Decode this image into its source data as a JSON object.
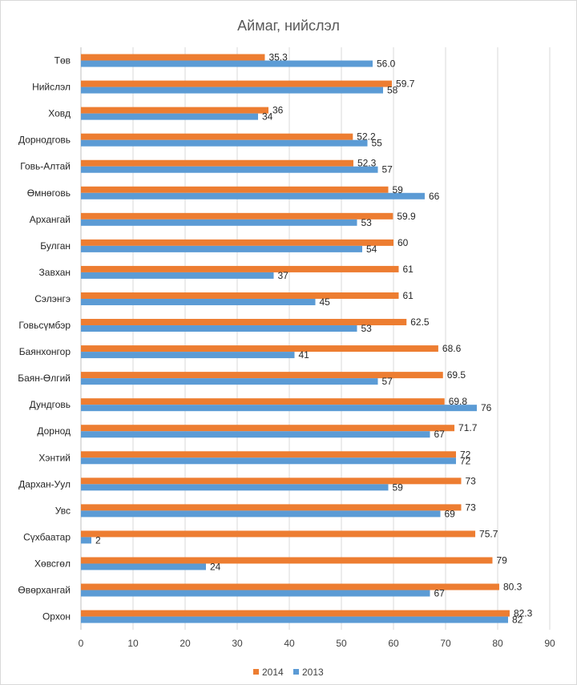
{
  "chart_data": {
    "type": "bar",
    "orientation": "horizontal",
    "title": "Аймаг, нийслэл",
    "categories": [
      "Төв",
      "Нийслэл",
      "Ховд",
      "Дорнодговь",
      "Говь-Алтай",
      "Өмнөговь",
      "Архангай",
      "Булган",
      "Завхан",
      "Сэлэнгэ",
      "Говьсүмбэр",
      "Баянхонгор",
      "Баян-Өлгий",
      "Дундговь",
      "Дорнод",
      "Хэнтий",
      "Дархан-Уул",
      "Увс",
      "Сүхбаатар",
      "Хөвсгөл",
      "Өвөрхангай",
      "Орхон"
    ],
    "series": [
      {
        "name": "2014",
        "color": "#ED7D31",
        "values": [
          35.3,
          59.7,
          36,
          52.2,
          52.3,
          59,
          59.9,
          60,
          61,
          61,
          62.5,
          68.6,
          69.5,
          69.8,
          71.7,
          72,
          73,
          73,
          75.7,
          79,
          80.3,
          82.3
        ],
        "labels": [
          "35.3",
          "59.7",
          "36",
          "52.2",
          "52.3",
          "59",
          "59.9",
          "60",
          "61",
          "61",
          "62.5",
          "68.6",
          "69.5",
          "69.8",
          "71.7",
          "72",
          "73",
          "73",
          "75.7",
          "79",
          "80.3",
          "82.3"
        ]
      },
      {
        "name": "2013",
        "color": "#5B9BD5",
        "values": [
          56.0,
          58,
          34,
          55,
          57,
          66,
          53,
          54,
          37,
          45,
          53,
          41,
          57,
          76,
          67,
          72,
          59,
          69,
          2,
          24,
          67,
          82
        ],
        "labels": [
          "56.0",
          "58",
          "34",
          "55",
          "57",
          "66",
          "53",
          "54",
          "37",
          "45",
          "53",
          "41",
          "57",
          "76",
          "67",
          "72",
          "59",
          "69",
          "2",
          "24",
          "67",
          "82"
        ]
      }
    ],
    "xlim": [
      0,
      90
    ],
    "xticks": [
      "0",
      "10",
      "20",
      "30",
      "40",
      "50",
      "60",
      "70",
      "80",
      "90"
    ],
    "grid": true,
    "legend": "bottom"
  }
}
